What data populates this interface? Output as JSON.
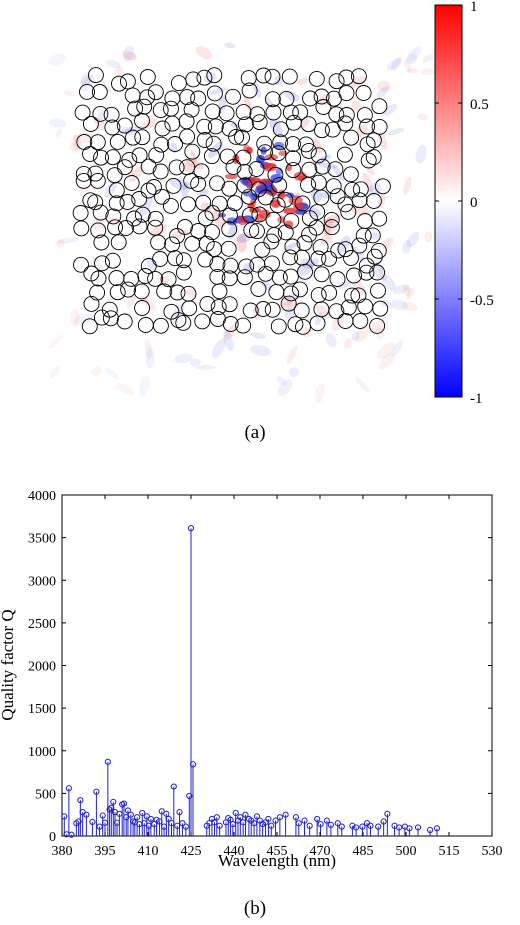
{
  "captions": {
    "a": "(a)",
    "b": "(b)"
  },
  "colorbar": {
    "ticks": [
      "1",
      "0.5",
      "0",
      "-0.5",
      "-1"
    ],
    "tick_values": [
      1,
      0.5,
      0,
      -0.5,
      -1
    ],
    "range": [
      -1,
      1
    ],
    "colors": {
      "max": "#ff0000",
      "mid": "#ffffff",
      "min": "#0000ff"
    }
  },
  "field_map": {
    "description_colors": {
      "positive": "#e03030",
      "negative": "#3040e0",
      "ring": "#000000"
    }
  },
  "chart_data": {
    "type": "stem",
    "xlabel": "Wavelength (nm)",
    "ylabel": "Quality factor Q",
    "xlim": [
      380,
      530
    ],
    "ylim": [
      0,
      4000
    ],
    "xticks": [
      380,
      395,
      410,
      425,
      440,
      455,
      470,
      485,
      500,
      515,
      530
    ],
    "yticks": [
      0,
      500,
      1000,
      1500,
      2000,
      2500,
      3000,
      3500,
      4000
    ],
    "color": "#2020cc",
    "grid": false,
    "points": [
      [
        380.8,
        230
      ],
      [
        381.6,
        20
      ],
      [
        382.4,
        560
      ],
      [
        383.3,
        15
      ],
      [
        385.0,
        150
      ],
      [
        385.8,
        170
      ],
      [
        386.4,
        420
      ],
      [
        387.2,
        280
      ],
      [
        388.5,
        250
      ],
      [
        390.6,
        165
      ],
      [
        392.0,
        520
      ],
      [
        393.1,
        110
      ],
      [
        394.2,
        240
      ],
      [
        395.0,
        155
      ],
      [
        396.0,
        870
      ],
      [
        396.6,
        310
      ],
      [
        397.2,
        330
      ],
      [
        397.9,
        400
      ],
      [
        398.5,
        280
      ],
      [
        399.2,
        155
      ],
      [
        400.0,
        260
      ],
      [
        401.0,
        370
      ],
      [
        401.6,
        380
      ],
      [
        402.4,
        220
      ],
      [
        403.0,
        300
      ],
      [
        404.0,
        250
      ],
      [
        404.8,
        170
      ],
      [
        405.4,
        160
      ],
      [
        406.2,
        220
      ],
      [
        407.0,
        140
      ],
      [
        408.0,
        270
      ],
      [
        408.7,
        150
      ],
      [
        409.6,
        230
      ],
      [
        410.3,
        120
      ],
      [
        411.0,
        200
      ],
      [
        412.2,
        140
      ],
      [
        413.0,
        190
      ],
      [
        414.0,
        170
      ],
      [
        414.8,
        290
      ],
      [
        415.6,
        110
      ],
      [
        416.4,
        260
      ],
      [
        417.2,
        200
      ],
      [
        418.2,
        150
      ],
      [
        419.0,
        580
      ],
      [
        420.2,
        120
      ],
      [
        421.0,
        280
      ],
      [
        422.0,
        150
      ],
      [
        423.2,
        110
      ],
      [
        424.4,
        470
      ],
      [
        425.0,
        3610
      ],
      [
        425.7,
        840
      ],
      [
        430.5,
        120
      ],
      [
        431.4,
        150
      ],
      [
        432.3,
        200
      ],
      [
        433.2,
        160
      ],
      [
        434.0,
        220
      ],
      [
        435.0,
        120
      ],
      [
        437.2,
        160
      ],
      [
        438.0,
        210
      ],
      [
        438.8,
        190
      ],
      [
        439.6,
        140
      ],
      [
        440.6,
        270
      ],
      [
        441.4,
        180
      ],
      [
        442.2,
        220
      ],
      [
        443.2,
        160
      ],
      [
        444.0,
        250
      ],
      [
        445.2,
        200
      ],
      [
        446.0,
        180
      ],
      [
        447.0,
        150
      ],
      [
        448.0,
        230
      ],
      [
        449.0,
        180
      ],
      [
        450.0,
        140
      ],
      [
        451.0,
        160
      ],
      [
        452.0,
        200
      ],
      [
        453.0,
        120
      ],
      [
        454.5,
        180
      ],
      [
        456.0,
        220
      ],
      [
        458.0,
        250
      ],
      [
        461.6,
        220
      ],
      [
        462.6,
        150
      ],
      [
        464.6,
        180
      ],
      [
        466.4,
        120
      ],
      [
        469.0,
        200
      ],
      [
        470.2,
        140
      ],
      [
        472.4,
        180
      ],
      [
        473.8,
        130
      ],
      [
        476.2,
        150
      ],
      [
        477.6,
        110
      ],
      [
        481.3,
        120
      ],
      [
        482.6,
        100
      ],
      [
        484.8,
        110
      ],
      [
        486.4,
        150
      ],
      [
        487.6,
        120
      ],
      [
        490.3,
        110
      ],
      [
        492.2,
        170
      ],
      [
        493.5,
        260
      ],
      [
        496.0,
        120
      ],
      [
        497.6,
        100
      ],
      [
        499.6,
        110
      ],
      [
        501.2,
        90
      ],
      [
        504.2,
        100
      ],
      [
        508.4,
        70
      ],
      [
        510.8,
        90
      ]
    ]
  }
}
